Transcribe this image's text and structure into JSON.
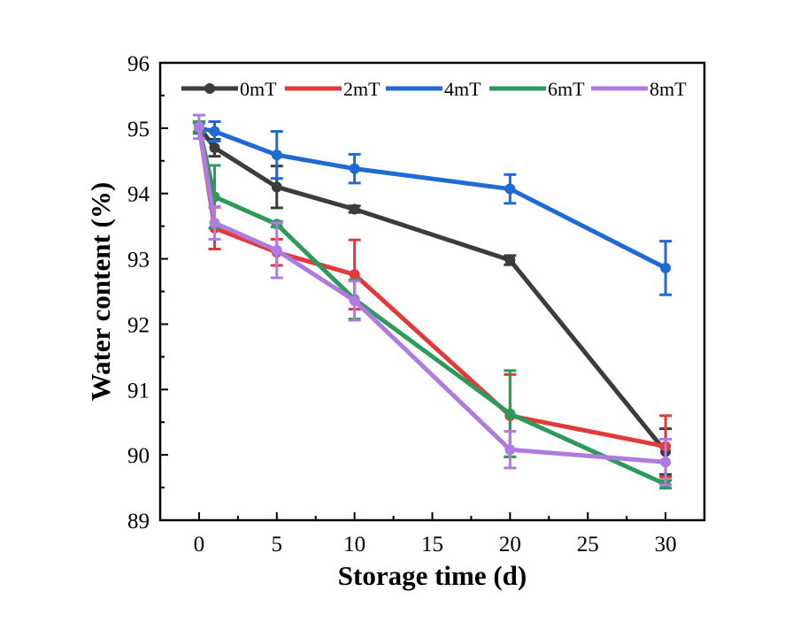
{
  "chart_data": {
    "type": "line",
    "xlabel": "Storage time (d)",
    "ylabel": "Water content (%)",
    "xlim": [
      -2.5,
      32.5
    ],
    "ylim": [
      89,
      96
    ],
    "xticks": [
      0,
      5,
      10,
      15,
      20,
      25,
      30
    ],
    "yticks": [
      89,
      90,
      91,
      92,
      93,
      94,
      95,
      96
    ],
    "legend_position": "top",
    "series": [
      {
        "name": "0mT",
        "color": "#3c3c3c",
        "x": [
          0,
          1,
          5,
          10,
          20,
          30
        ],
        "y": [
          95.02,
          94.7,
          94.1,
          93.76,
          92.98,
          90.05
        ],
        "err": [
          0.08,
          0.13,
          0.32,
          0.05,
          0.07,
          0.35
        ]
      },
      {
        "name": "2mT",
        "color": "#e23a3a",
        "x": [
          0,
          1,
          5,
          10,
          20,
          30
        ],
        "y": [
          95.02,
          93.47,
          93.1,
          92.76,
          90.6,
          90.13
        ],
        "err": [
          0.08,
          0.32,
          0.2,
          0.53,
          0.63,
          0.47
        ]
      },
      {
        "name": "4mT",
        "color": "#1f6bd3",
        "x": [
          0,
          1,
          5,
          10,
          20,
          30
        ],
        "y": [
          95.0,
          94.95,
          94.59,
          94.38,
          94.07,
          92.86
        ],
        "err": [
          0.08,
          0.15,
          0.36,
          0.22,
          0.22,
          0.41
        ]
      },
      {
        "name": "6mT",
        "color": "#2e9a5a",
        "x": [
          0,
          1,
          5,
          10,
          20,
          30
        ],
        "y": [
          95.02,
          93.95,
          93.53,
          92.38,
          90.63,
          89.55
        ],
        "err": [
          0.08,
          0.48,
          0.04,
          0.3,
          0.66,
          0.06
        ]
      },
      {
        "name": "8mT",
        "color": "#b07be0",
        "x": [
          0,
          1,
          5,
          10,
          20,
          30
        ],
        "y": [
          95.02,
          93.55,
          93.13,
          92.36,
          90.08,
          89.89
        ],
        "err": [
          0.18,
          0.25,
          0.42,
          0.3,
          0.28,
          0.35
        ]
      }
    ]
  }
}
